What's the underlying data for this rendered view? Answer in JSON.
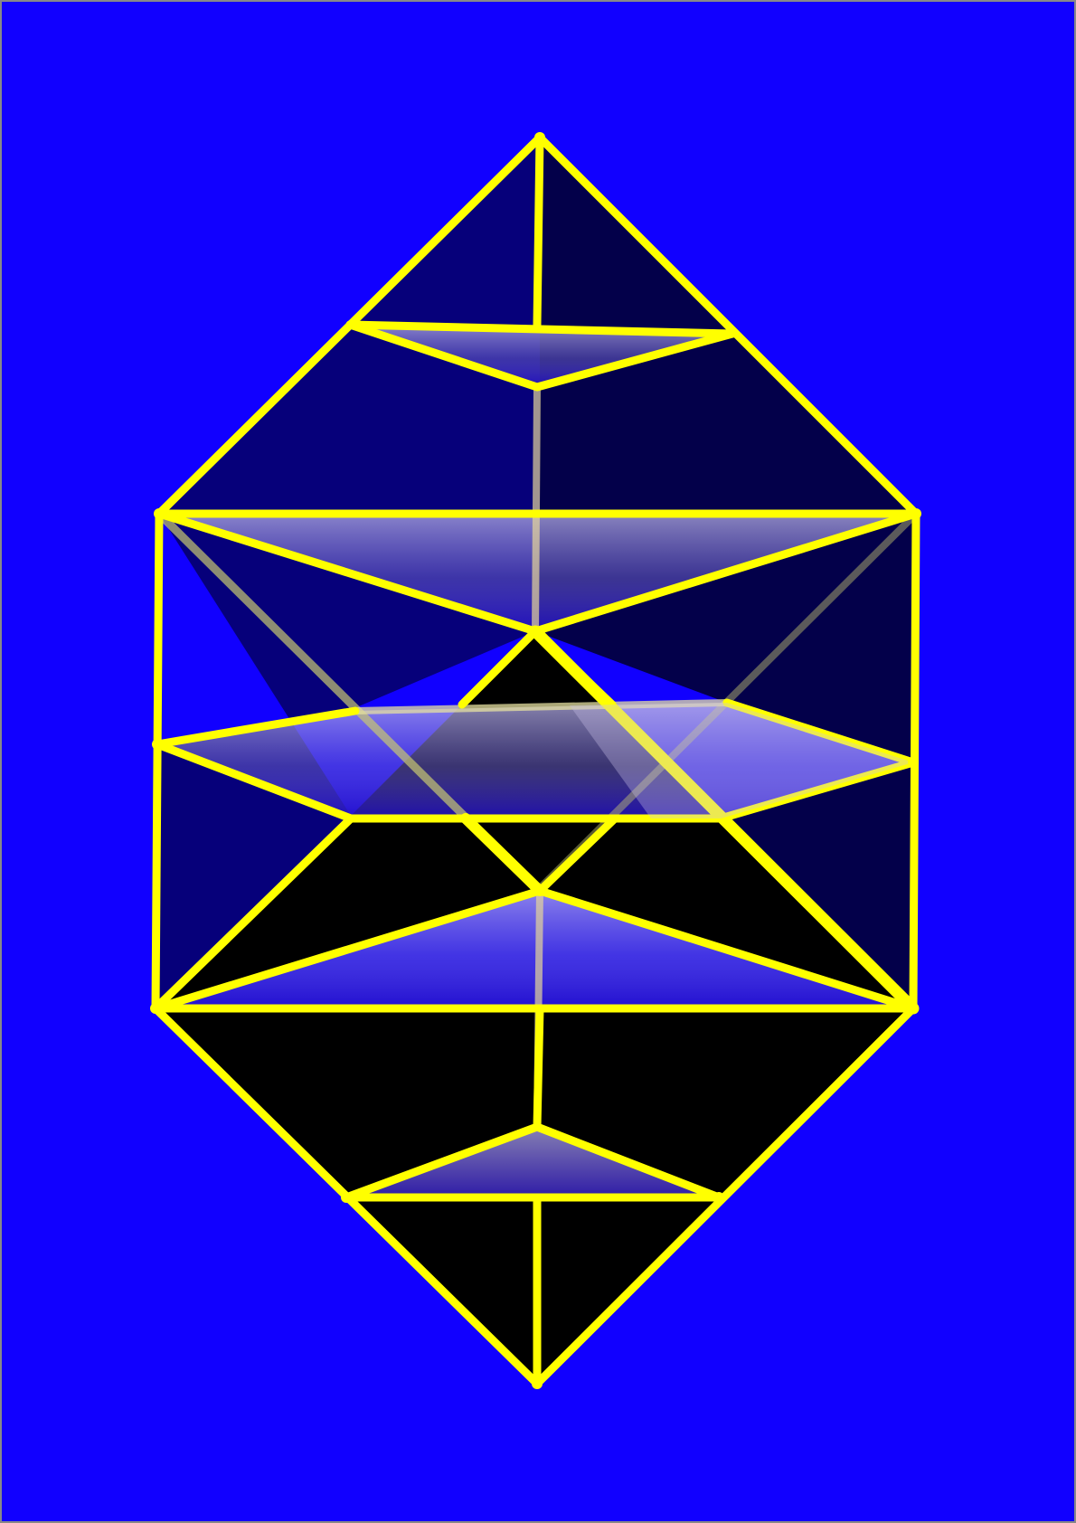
{
  "figure": {
    "description_visible_text": "",
    "colors": {
      "background": "#1100ff",
      "frame_border": "#888888",
      "edge": "#ffff00",
      "solid_dark_navy": "#06007a",
      "solid_darker_navy": "#03004a",
      "solid_black": "#000000",
      "cross_section_light": "#a49fd6",
      "cross_section_deep": "#2a10c0"
    },
    "elements": {
      "shape": "crystal-polyhedron",
      "cross_sections": 5,
      "hidden_edges": true
    }
  }
}
